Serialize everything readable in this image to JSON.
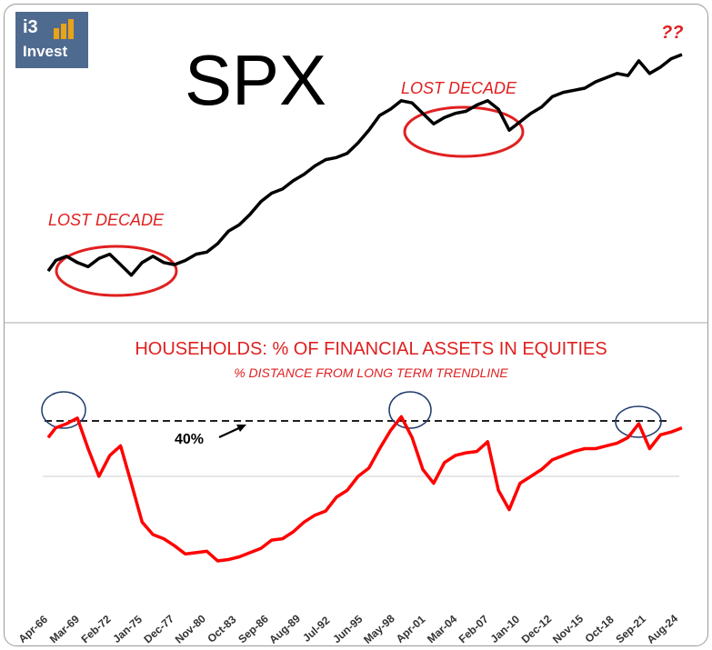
{
  "logo": {
    "line1": "i3",
    "line2": "Invest"
  },
  "top_panel": {
    "title": "SPX",
    "question": "??",
    "annotations": [
      "LOST DECADE",
      "LOST DECADE"
    ]
  },
  "bottom_panel": {
    "title": "HOUSEHOLDS: % OF FINANCIAL ASSETS IN EQUITIES",
    "subtitle": "% DISTANCE FROM LONG TERM TRENDLINE",
    "threshold_label": "40%"
  },
  "colors": {
    "spx_line": "#000000",
    "equity_line": "#ff0000",
    "annotation": "#e02020",
    "circle_blue": "#1f3a6b",
    "logo_bg": "#4f6a8f"
  },
  "chart_data": [
    {
      "type": "line",
      "title": "SPX",
      "series": [
        {
          "x": [
            1966.3,
            1967,
            1968,
            1969,
            1970,
            1971,
            1972,
            1973,
            1974,
            1975,
            1976,
            1977,
            1978,
            1979,
            1980,
            1981,
            1982,
            1983,
            1984,
            1985,
            1986,
            1987,
            1988,
            1989,
            1990,
            1991,
            1992,
            1993,
            1994,
            1995,
            1996,
            1997,
            1998,
            1999,
            2000,
            2001,
            2002,
            2003,
            2004,
            2005,
            2006,
            2007,
            2008,
            2009,
            2010,
            2011,
            2012,
            2013,
            2014,
            2015,
            2016,
            2017,
            2018,
            2019,
            2020,
            2021,
            2022,
            2023,
            2024,
            2025
          ],
          "values": [
            0.03,
            0.08,
            0.1,
            0.07,
            0.05,
            0.09,
            0.11,
            0.06,
            0.01,
            0.07,
            0.1,
            0.07,
            0.06,
            0.08,
            0.11,
            0.12,
            0.16,
            0.22,
            0.25,
            0.3,
            0.36,
            0.4,
            0.42,
            0.46,
            0.49,
            0.53,
            0.56,
            0.57,
            0.59,
            0.64,
            0.7,
            0.77,
            0.8,
            0.84,
            0.83,
            0.78,
            0.73,
            0.76,
            0.78,
            0.79,
            0.82,
            0.84,
            0.8,
            0.7,
            0.74,
            0.78,
            0.81,
            0.86,
            0.88,
            0.89,
            0.9,
            0.93,
            0.95,
            0.97,
            0.96,
            1.03,
            0.97,
            1.0,
            1.04,
            1.06
          ]
        }
      ],
      "annotations": [
        "LOST DECADE",
        "LOST DECADE",
        "??"
      ]
    },
    {
      "type": "line",
      "title": "HOUSEHOLDS: % OF FINANCIAL ASSETS IN EQUITIES",
      "subtitle": "% DISTANCE FROM LONG TERM TRENDLINE",
      "xlabel": "",
      "ylabel": "",
      "reference_line": {
        "value": 40,
        "label": "40%",
        "style": "dashed"
      },
      "x_tick_labels": [
        "Apr-66",
        "Mar-69",
        "Feb-72",
        "Jan-75",
        "Dec-77",
        "Nov-80",
        "Oct-83",
        "Sep-86",
        "Aug-89",
        "Jul-92",
        "Jun-95",
        "May-98",
        "Apr-01",
        "Mar-04",
        "Feb-07",
        "Jan-10",
        "Dec-12",
        "Nov-15",
        "Oct-18",
        "Sep-21",
        "Aug-24"
      ],
      "series": [
        {
          "x": [
            1966.3,
            1967,
            1968,
            1969,
            1970,
            1971,
            1972,
            1973,
            1974,
            1975,
            1976,
            1977,
            1978,
            1979,
            1980,
            1981,
            1982,
            1983,
            1984,
            1985,
            1986,
            1987,
            1988,
            1989,
            1990,
            1991,
            1992,
            1993,
            1994,
            1995,
            1996,
            1997,
            1998,
            1999,
            2000,
            2001,
            2002,
            2003,
            2004,
            2005,
            2006,
            2007,
            2008,
            2009,
            2010,
            2011,
            2012,
            2013,
            2014,
            2015,
            2016,
            2017,
            2018,
            2019,
            2020,
            2021,
            2022,
            2023,
            2024,
            2025
          ],
          "values": [
            28,
            35,
            38,
            42,
            20,
            0,
            15,
            22,
            -5,
            -33,
            -42,
            -45,
            -50,
            -56,
            -55,
            -54,
            -61,
            -60,
            -58,
            -55,
            -52,
            -46,
            -45,
            -40,
            -33,
            -28,
            -25,
            -15,
            -10,
            0,
            6,
            20,
            33,
            43,
            28,
            5,
            -5,
            10,
            15,
            17,
            18,
            25,
            -10,
            -24,
            -5,
            0,
            5,
            12,
            15,
            18,
            20,
            20,
            22,
            24,
            28,
            38,
            20,
            30,
            32,
            35
          ]
        }
      ]
    }
  ]
}
